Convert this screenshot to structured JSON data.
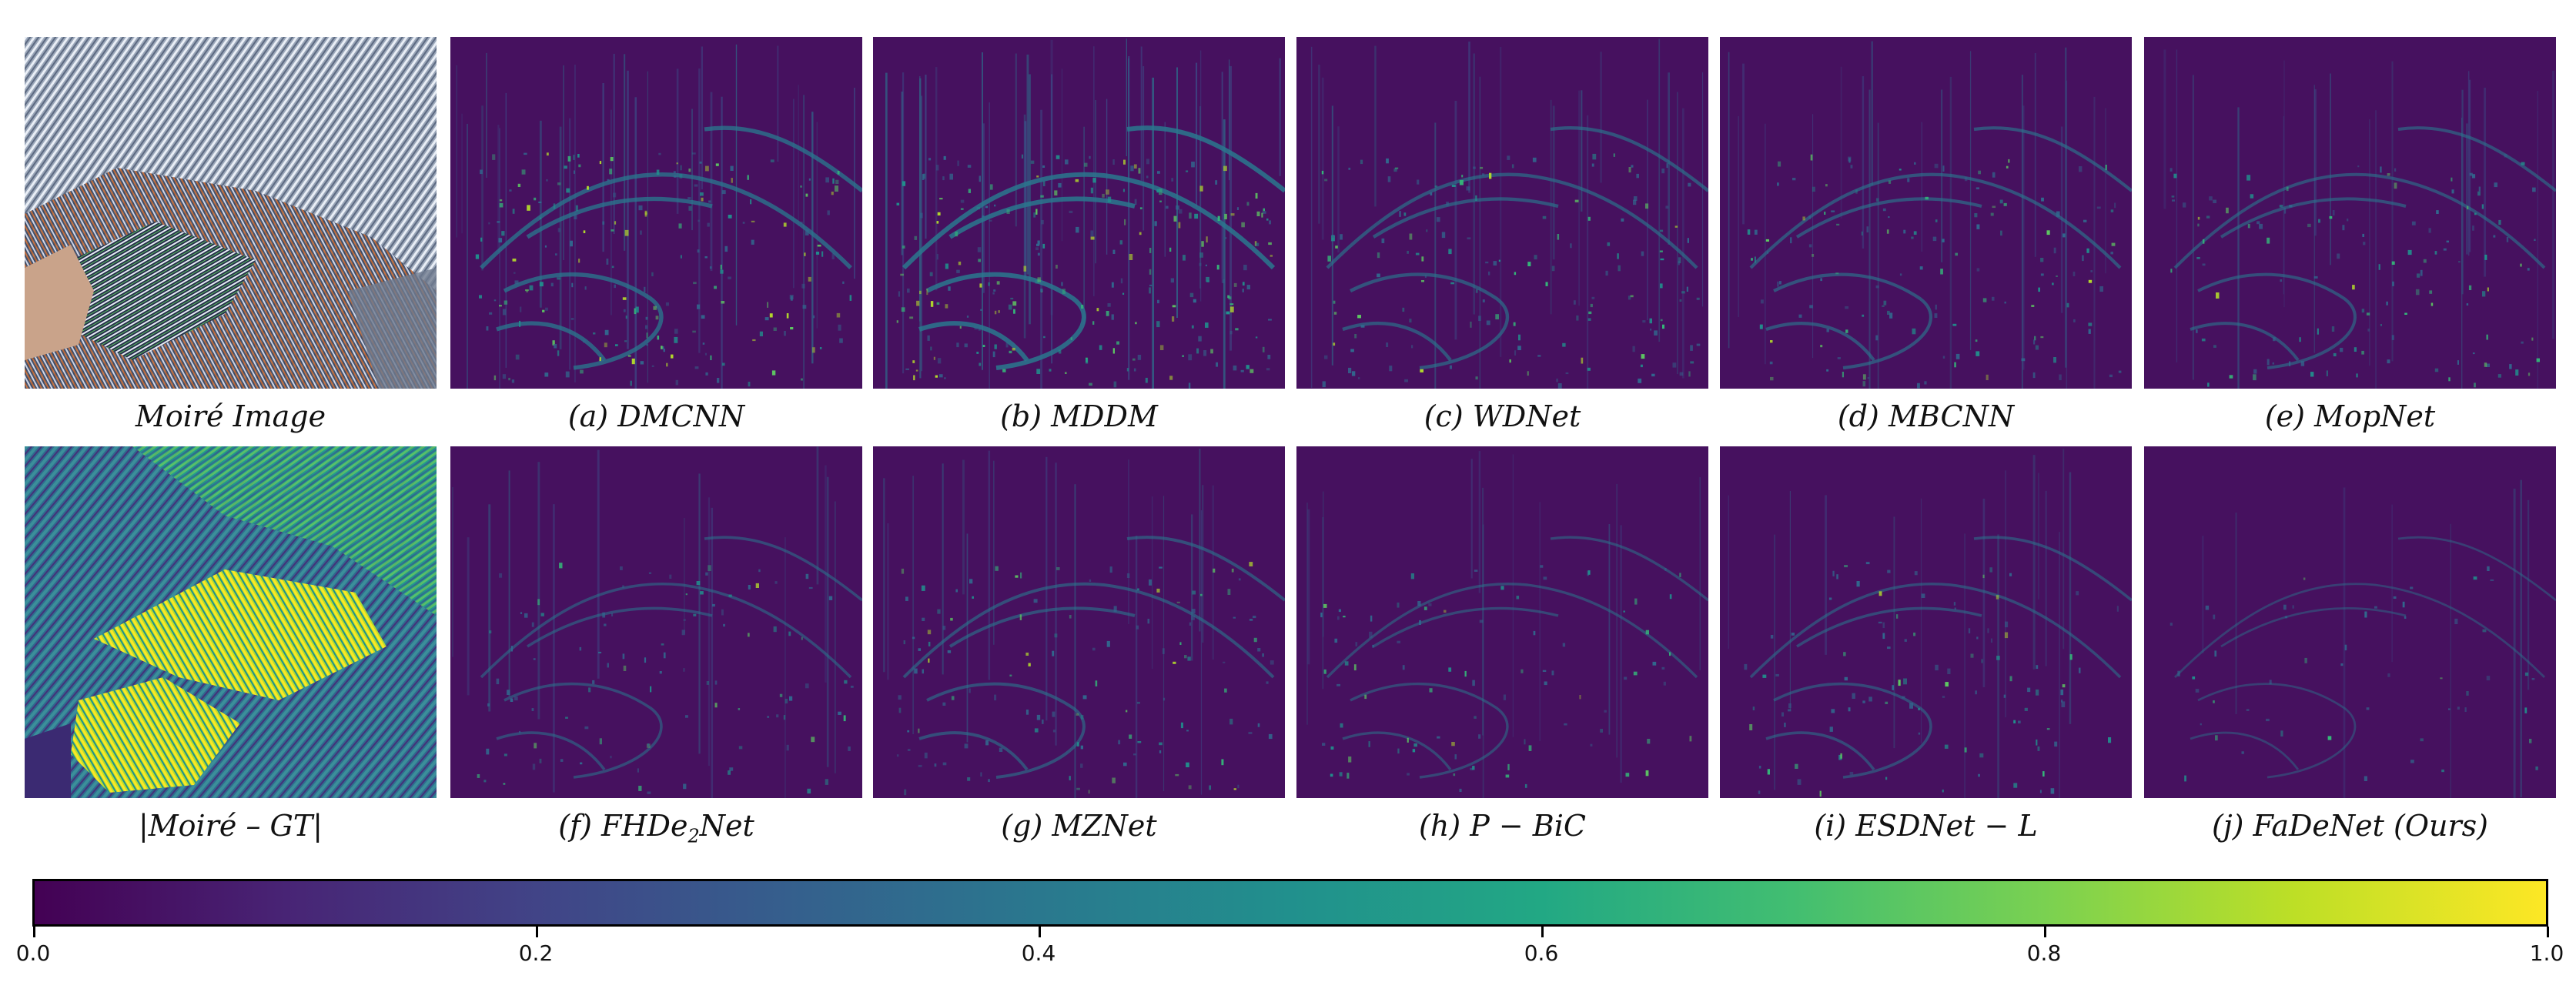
{
  "figure": {
    "rows": [
      [
        {
          "id": "moire",
          "caption": "Moiré Image",
          "kind": "photo"
        },
        {
          "id": "a",
          "caption": "(a) DMCNN",
          "kind": "error",
          "intensity": 0.85
        },
        {
          "id": "b",
          "caption": "(b) MDDM",
          "kind": "error",
          "intensity": 1.0
        },
        {
          "id": "c",
          "caption": "(c) WDNet",
          "kind": "error",
          "intensity": 0.6
        },
        {
          "id": "d",
          "caption": "(d) MBCNN",
          "kind": "error",
          "intensity": 0.55
        },
        {
          "id": "e",
          "caption": "(e) MopNet",
          "kind": "error",
          "intensity": 0.5
        }
      ],
      [
        {
          "id": "diff",
          "caption": "|Moiré – GT|",
          "kind": "diff"
        },
        {
          "id": "f",
          "caption_prefix": "(f) FHDe",
          "caption_sub": "2",
          "caption_suffix": "Net",
          "kind": "error",
          "intensity": 0.4
        },
        {
          "id": "g",
          "caption": "(g) MZNet",
          "kind": "error",
          "intensity": 0.5
        },
        {
          "id": "h",
          "caption": "(h) P − BiC",
          "kind": "error",
          "intensity": 0.35
        },
        {
          "id": "i",
          "caption": "(i) ESDNet − L",
          "kind": "error",
          "intensity": 0.4
        },
        {
          "id": "j",
          "caption": "(j) FaDeNet (Ours)",
          "kind": "error",
          "intensity": 0.2
        }
      ]
    ],
    "colorbar": {
      "colormap": "viridis",
      "min": 0.0,
      "max": 1.0,
      "ticks": [
        "0.0",
        "0.2",
        "0.4",
        "0.6",
        "0.8",
        "1.0"
      ]
    }
  }
}
